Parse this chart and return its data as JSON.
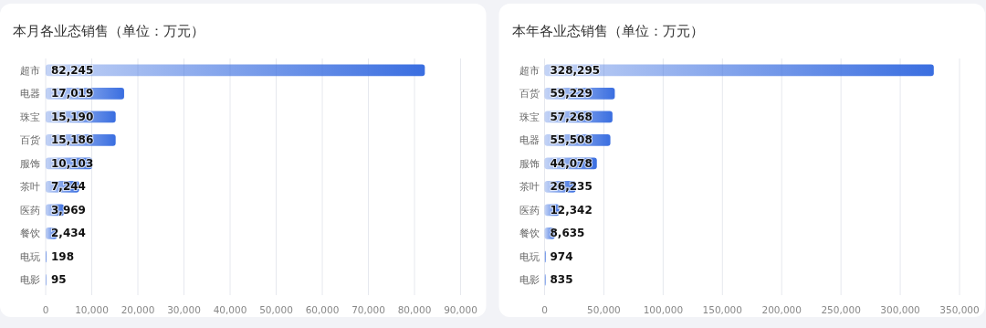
{
  "chart_data": [
    {
      "type": "bar",
      "orientation": "horizontal",
      "title": "本月各业态销售（单位：万元）",
      "categories": [
        "超市",
        "电器",
        "珠宝",
        "百货",
        "服饰",
        "茶叶",
        "医药",
        "餐饮",
        "电玩",
        "电影"
      ],
      "values": [
        82245,
        17019,
        15190,
        15186,
        10103,
        7244,
        3969,
        2434,
        198,
        95
      ],
      "value_labels": [
        "82,245",
        "17,019",
        "15,190",
        "15,186",
        "10,103",
        "7,244",
        "3,969",
        "2,434",
        "198",
        "95"
      ],
      "color": "#3a6ee0",
      "xlim": [
        0,
        90000
      ],
      "xticks": [
        {
          "value": 0,
          "label": "0"
        },
        {
          "value": 10000,
          "label": "10,000"
        },
        {
          "value": 20000,
          "label": "20,000"
        },
        {
          "value": 30000,
          "label": "30,000"
        },
        {
          "value": 40000,
          "label": "40,000"
        },
        {
          "value": 50000,
          "label": "50,000"
        },
        {
          "value": 60000,
          "label": "60,000"
        },
        {
          "value": 70000,
          "label": "70,000"
        },
        {
          "value": 80000,
          "label": "80,000"
        },
        {
          "value": 90000,
          "label": "90,000"
        }
      ],
      "grid": "x"
    },
    {
      "type": "bar",
      "orientation": "horizontal",
      "title": "本年各业态销售（单位：万元）",
      "categories": [
        "超市",
        "百货",
        "珠宝",
        "电器",
        "服饰",
        "茶叶",
        "医药",
        "餐饮",
        "电玩",
        "电影"
      ],
      "values": [
        328295,
        59229,
        57268,
        55508,
        44078,
        26235,
        12342,
        8635,
        974,
        835
      ],
      "value_labels": [
        "328,295",
        "59,229",
        "57,268",
        "55,508",
        "44,078",
        "26,235",
        "12,342",
        "8,635",
        "974",
        "835"
      ],
      "color": "#3a6ee0",
      "xlim": [
        0,
        350000
      ],
      "xticks": [
        {
          "value": 0,
          "label": "0"
        },
        {
          "value": 50000,
          "label": "50,000"
        },
        {
          "value": 100000,
          "label": "100,000"
        },
        {
          "value": 150000,
          "label": "150,000"
        },
        {
          "value": 200000,
          "label": "200,000"
        },
        {
          "value": 250000,
          "label": "250,000"
        },
        {
          "value": 300000,
          "label": "300,000"
        },
        {
          "value": 350000,
          "label": "350,000"
        }
      ],
      "grid": "x"
    }
  ]
}
